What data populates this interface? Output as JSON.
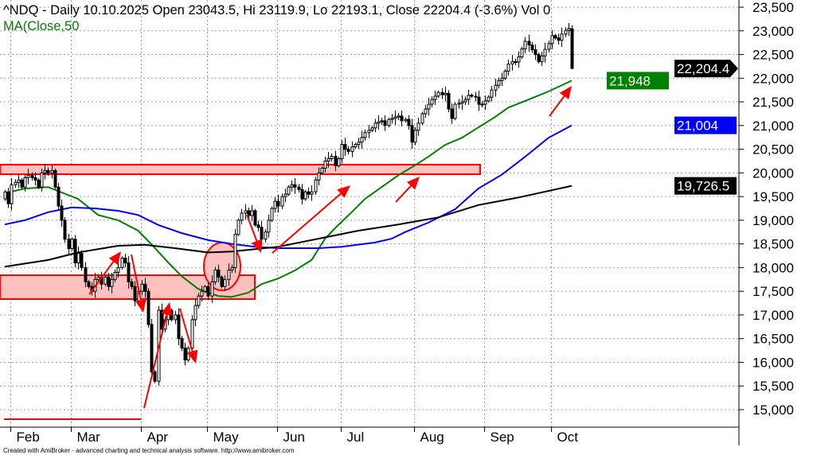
{
  "chart_data": {
    "type": "candlestick",
    "title": {
      "symbol_line": "^NDQ - Daily 10.10.2025 Open 23043.5, Hi 23119.9, Lo 22193.1, Close 22204.4 (-3.6%) Vol 0",
      "ma_label": "MA(Close,50"
    },
    "last_bar": {
      "open": 23043.5,
      "high": 23119.9,
      "low": 22193.1,
      "close": 22204.4
    },
    "ylim": [
      14700,
      23700
    ],
    "yticks": [
      "15,000",
      "15,500",
      "16,000",
      "16,500",
      "17,000",
      "17,500",
      "18,000",
      "18,500",
      "19,000",
      "19,500",
      "20,000",
      "20,500",
      "21,000",
      "21,500",
      "22,000",
      "22,500",
      "23,000",
      "23,500"
    ],
    "ytick_values": [
      15000,
      15500,
      16000,
      16500,
      17000,
      17500,
      18000,
      18500,
      19000,
      19500,
      20000,
      20500,
      21000,
      21500,
      22000,
      22500,
      23000,
      23500
    ],
    "xticks": [
      {
        "label": "Feb",
        "bar": 1
      },
      {
        "label": "Mar",
        "bar": 19
      },
      {
        "label": "Apr",
        "bar": 40
      },
      {
        "label": "May",
        "bar": 60
      },
      {
        "label": "Jun",
        "bar": 81
      },
      {
        "label": "Jul",
        "bar": 100
      },
      {
        "label": "Aug",
        "bar": 122
      },
      {
        "label": "Sep",
        "bar": 143
      },
      {
        "label": "Oct",
        "bar": 163
      }
    ],
    "grid": true,
    "closes": [
      19600,
      19350,
      19750,
      19800,
      19850,
      19700,
      19900,
      19950,
      19900,
      19850,
      19700,
      20000,
      20050,
      20000,
      20050,
      19700,
      19300,
      19000,
      18600,
      18400,
      18600,
      18100,
      18300,
      18000,
      17700,
      17600,
      17500,
      17750,
      17800,
      17650,
      17800,
      17600,
      17750,
      17900,
      18000,
      18200,
      18100,
      17700,
      17600,
      17300,
      17500,
      17650,
      17500,
      16800,
      15800,
      15600,
      17100,
      16700,
      16900,
      17100,
      16900,
      17000,
      16500,
      16300,
      16050,
      16300,
      16900,
      17200,
      17400,
      17500,
      17600,
      17400,
      17700,
      17950,
      17800,
      17600,
      17750,
      17950,
      18000,
      18700,
      19000,
      19150,
      19200,
      19100,
      19200,
      18900,
      18850,
      18600,
      18750,
      19000,
      19250,
      19400,
      19300,
      19500,
      19550,
      19700,
      19750,
      19700,
      19650,
      19450,
      19600,
      19550,
      19600,
      19850,
      20000,
      20100,
      20250,
      20300,
      20350,
      20150,
      20300,
      20600,
      20500,
      20450,
      20550,
      20600,
      20650,
      20750,
      20850,
      20900,
      20950,
      21050,
      21080,
      21100,
      21000,
      21130,
      21150,
      21180,
      21200,
      21100,
      21130,
      21000,
      20650,
      20900,
      21050,
      21250,
      21350,
      21450,
      21550,
      21620,
      21700,
      21650,
      21680,
      21350,
      21150,
      21450,
      21470,
      21500,
      21550,
      21640,
      21620,
      21600,
      21450,
      21450,
      21520,
      21600,
      21750,
      21850,
      21950,
      22000,
      22150,
      22300,
      22350,
      22340,
      22450,
      22620,
      22780,
      22700,
      22600,
      22500,
      22350,
      22470,
      22610,
      22730,
      22900,
      22850,
      22800,
      22930,
      23010,
      23050,
      22204.4
    ],
    "lines": [
      {
        "name": "MA(Close,50",
        "color": "#008000",
        "last_label": "21,948",
        "points": [
          [
            0,
            19570
          ],
          [
            6,
            19670
          ],
          [
            13,
            19700
          ],
          [
            22,
            19450
          ],
          [
            28,
            19110
          ],
          [
            34,
            19000
          ],
          [
            40,
            18780
          ],
          [
            44,
            18490
          ],
          [
            49,
            18110
          ],
          [
            53,
            17820
          ],
          [
            58,
            17550
          ],
          [
            64,
            17400
          ],
          [
            68,
            17380
          ],
          [
            73,
            17470
          ],
          [
            77,
            17650
          ],
          [
            82,
            17770
          ],
          [
            87,
            17940
          ],
          [
            92,
            18160
          ],
          [
            96,
            18610
          ],
          [
            99,
            18830
          ],
          [
            104,
            19170
          ],
          [
            108,
            19450
          ],
          [
            113,
            19700
          ],
          [
            118,
            19950
          ],
          [
            123,
            20160
          ],
          [
            127,
            20340
          ],
          [
            132,
            20590
          ],
          [
            137,
            20740
          ],
          [
            142,
            20960
          ],
          [
            147,
            21180
          ],
          [
            151,
            21380
          ],
          [
            156,
            21520
          ],
          [
            163,
            21720
          ],
          [
            170,
            21948
          ]
        ]
      },
      {
        "color": "#0000ff",
        "last_label": "21,004",
        "points": [
          [
            0,
            18910
          ],
          [
            6,
            19000
          ],
          [
            13,
            19170
          ],
          [
            20,
            19270
          ],
          [
            27,
            19250
          ],
          [
            34,
            19200
          ],
          [
            40,
            19110
          ],
          [
            46,
            18900
          ],
          [
            53,
            18730
          ],
          [
            61,
            18580
          ],
          [
            68,
            18500
          ],
          [
            75,
            18440
          ],
          [
            82,
            18410
          ],
          [
            94,
            18410
          ],
          [
            101,
            18440
          ],
          [
            111,
            18530
          ],
          [
            116,
            18610
          ],
          [
            120,
            18750
          ],
          [
            127,
            18950
          ],
          [
            135,
            19230
          ],
          [
            142,
            19670
          ],
          [
            149,
            19960
          ],
          [
            156,
            20340
          ],
          [
            163,
            20740
          ],
          [
            170,
            21004
          ]
        ]
      },
      {
        "color": "#000000",
        "last_label": "19,726.5",
        "points": [
          [
            0,
            18020
          ],
          [
            13,
            18160
          ],
          [
            22,
            18320
          ],
          [
            34,
            18460
          ],
          [
            42,
            18480
          ],
          [
            51,
            18410
          ],
          [
            61,
            18320
          ],
          [
            68,
            18340
          ],
          [
            75,
            18390
          ],
          [
            82,
            18440
          ],
          [
            94,
            18610
          ],
          [
            106,
            18780
          ],
          [
            118,
            18910
          ],
          [
            130,
            19060
          ],
          [
            142,
            19320
          ],
          [
            154,
            19480
          ],
          [
            170,
            19726.5
          ]
        ]
      }
    ],
    "last_close_label": "22,204.4",
    "colors": {
      "annotation": "#ff0000",
      "zone_fill": "#ffc0c0",
      "grid": "#a0a0a0"
    }
  },
  "footer": "Created with AmiBroker - advanced charting and technical analysis software. http://www.amibroker.com"
}
